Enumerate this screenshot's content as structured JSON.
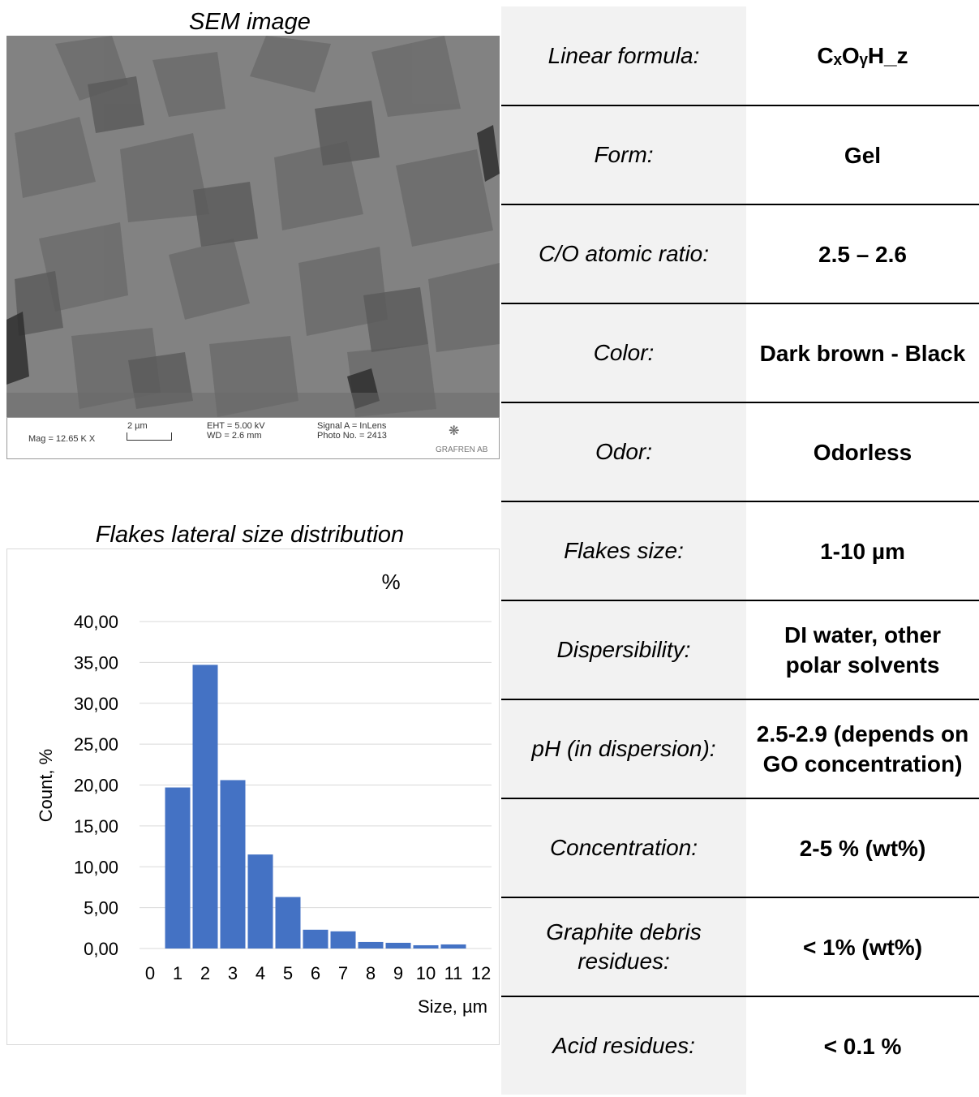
{
  "sem": {
    "title": "SEM image",
    "databar": {
      "mag": "Mag = 12.65 K X",
      "scale": "2 µm",
      "eht": "EHT = 5.00 kV",
      "wd": "WD = 2.6 mm",
      "signal": "Signal A = InLens",
      "photo": "Photo No. = 2413",
      "brand": "GRAFREN AB"
    }
  },
  "histogram": {
    "title": "Flakes lateral size distribution"
  },
  "chart_data": {
    "type": "bar",
    "title": "%",
    "xlabel": "Size, µm",
    "ylabel": "Count, %",
    "x_ticks": [
      "0",
      "1",
      "2",
      "3",
      "4",
      "5",
      "6",
      "7",
      "8",
      "9",
      "10",
      "11",
      "12"
    ],
    "y_ticks": [
      "0,00",
      "5,00",
      "10,00",
      "15,00",
      "20,00",
      "25,00",
      "30,00",
      "35,00",
      "40,00"
    ],
    "ylim": [
      0,
      40
    ],
    "xlim": [
      0,
      12
    ],
    "grid": true,
    "bar_color": "#4472c4",
    "series": [
      {
        "x": [
          1,
          2,
          3,
          4,
          5,
          6,
          7,
          8,
          9,
          10,
          11
        ],
        "values": [
          19.7,
          34.7,
          20.6,
          11.5,
          6.3,
          2.3,
          2.1,
          0.8,
          0.7,
          0.4,
          0.5
        ]
      }
    ]
  },
  "properties": [
    {
      "label": "Linear formula:",
      "value": "CₓOᵧH_z"
    },
    {
      "label": "Form:",
      "value": "Gel"
    },
    {
      "label": "C/O atomic ratio:",
      "value": "2.5 – 2.6"
    },
    {
      "label": "Color:",
      "value": "Dark brown - Black"
    },
    {
      "label": "Odor:",
      "value": "Odorless"
    },
    {
      "label": "Flakes size:",
      "value": "1-10 µm"
    },
    {
      "label": "Dispersibility:",
      "value": "DI water, other polar solvents"
    },
    {
      "label": "pH (in dispersion):",
      "value": "2.5-2.9 (depends on GO concentration)"
    },
    {
      "label": "Concentration:",
      "value": "2-5 % (wt%)"
    },
    {
      "label": "Graphite debris residues:",
      "value": "< 1% (wt%)"
    },
    {
      "label": "Acid residues:",
      "value": "< 0.1 %"
    }
  ]
}
